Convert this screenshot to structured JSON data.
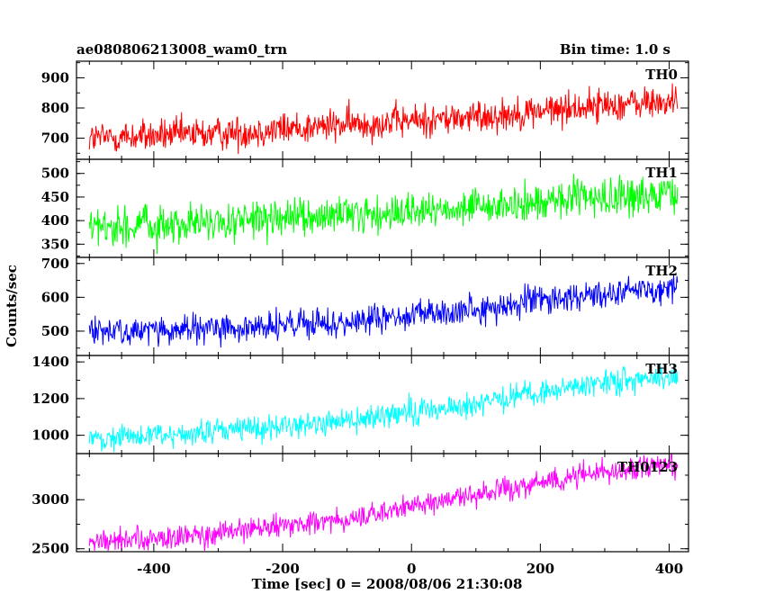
{
  "header": {
    "title": "ae080806213008_wam0_trn",
    "bin_time": "Bin time: 1.0 s"
  },
  "axes": {
    "xlabel": "Time [sec] 0 = 2008/08/06 21:30:08",
    "ylabel": "Counts/sec"
  },
  "chart_data": {
    "type": "line",
    "title": "ae080806213008_wam0_trn",
    "subtitle": "Bin time: 1.0 s",
    "xlabel": "Time [sec] 0 = 2008/08/06 21:30:08",
    "ylabel": "Counts/sec",
    "xlim": [
      -520,
      430
    ],
    "x_ticks": [
      -400,
      -200,
      0,
      200,
      400
    ],
    "x_range_data": [
      -500,
      413
    ],
    "bin_seconds": 1.0,
    "grid": false,
    "panels": [
      {
        "name": "TH0",
        "color": "#ff0000",
        "ylim": [
          630,
          955
        ],
        "y_ticks": [
          700,
          800,
          900
        ],
        "trend": {
          "x": [
            -500,
            -300,
            -100,
            100,
            300,
            413
          ],
          "y": [
            700,
            715,
            745,
            770,
            810,
            820
          ]
        },
        "noise_sd": 28
      },
      {
        "name": "TH1",
        "color": "#00ff00",
        "ylim": [
          322,
          530
        ],
        "y_ticks": [
          350,
          400,
          450,
          500
        ],
        "trend": {
          "x": [
            -500,
            -300,
            -100,
            100,
            300,
            413
          ],
          "y": [
            385,
            395,
            410,
            425,
            450,
            455
          ]
        },
        "noise_sd": 20
      },
      {
        "name": "TH2",
        "color": "#0000ff",
        "ylim": [
          428,
          718
        ],
        "y_ticks": [
          500,
          600,
          700
        ],
        "trend": {
          "x": [
            -500,
            -300,
            -100,
            100,
            300,
            413
          ],
          "y": [
            500,
            505,
            525,
            565,
            615,
            630
          ]
        },
        "noise_sd": 22
      },
      {
        "name": "TH3",
        "color": "#00ffff",
        "ylim": [
          900,
          1435
        ],
        "y_ticks": [
          1000,
          1200,
          1400
        ],
        "trend": {
          "x": [
            -500,
            -300,
            -100,
            100,
            300,
            413
          ],
          "y": [
            980,
            1020,
            1080,
            1170,
            1290,
            1330
          ]
        },
        "noise_sd": 35
      },
      {
        "name": "TH0123",
        "color": "#ff00ff",
        "ylim": [
          2470,
          3470
        ],
        "y_ticks": [
          2500,
          3000
        ],
        "trend": {
          "x": [
            -500,
            -300,
            -100,
            100,
            300,
            413
          ],
          "y": [
            2560,
            2650,
            2800,
            3050,
            3300,
            3340
          ]
        },
        "noise_sd": 60
      }
    ]
  }
}
